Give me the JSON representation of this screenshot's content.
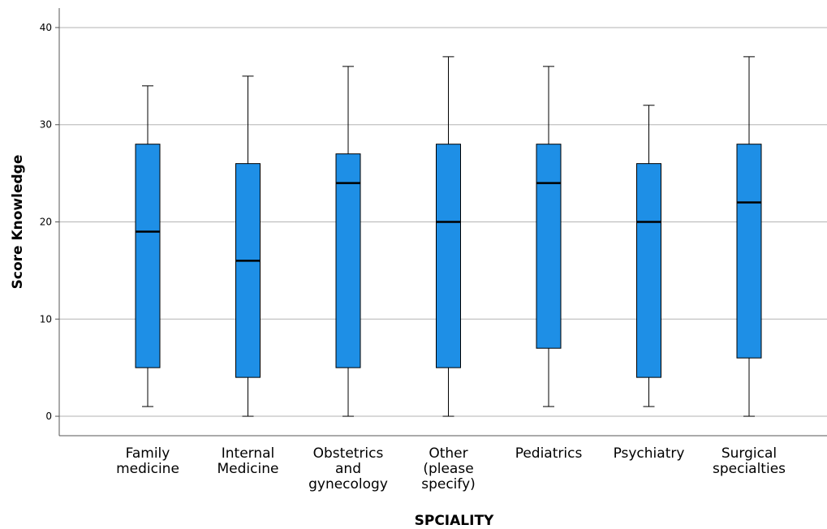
{
  "chart_data": {
    "type": "box",
    "title": "",
    "xlabel": "SPCIALITY",
    "ylabel": "Score Knowledge",
    "ylim": [
      -2,
      42
    ],
    "yticks": [
      "0",
      "10",
      "20",
      "30",
      "40"
    ],
    "ytick_values": [
      0,
      10,
      20,
      30,
      40
    ],
    "grid": true,
    "box_color": "#1e8fe6",
    "categories": [
      [
        "Family",
        "medicine"
      ],
      [
        "Internal",
        "Medicine"
      ],
      [
        "Obstetrics",
        "and",
        "gynecology"
      ],
      [
        "Other",
        "(please",
        "specify)"
      ],
      [
        "Pediatrics"
      ],
      [
        "Psychiatry"
      ],
      [
        "Surgical",
        "specialties"
      ]
    ],
    "boxes": [
      {
        "min": 1,
        "q1": 5,
        "median": 19,
        "q3": 28,
        "max": 34
      },
      {
        "min": 0,
        "q1": 4,
        "median": 16,
        "q3": 26,
        "max": 35
      },
      {
        "min": 0,
        "q1": 5,
        "median": 24,
        "q3": 27,
        "max": 36
      },
      {
        "min": 0,
        "q1": 5,
        "median": 20,
        "q3": 28,
        "max": 37
      },
      {
        "min": 1,
        "q1": 7,
        "median": 24,
        "q3": 28,
        "max": 36
      },
      {
        "min": 1,
        "q1": 4,
        "median": 20,
        "q3": 26,
        "max": 32
      },
      {
        "min": 0,
        "q1": 6,
        "median": 22,
        "q3": 28,
        "max": 37
      }
    ]
  }
}
